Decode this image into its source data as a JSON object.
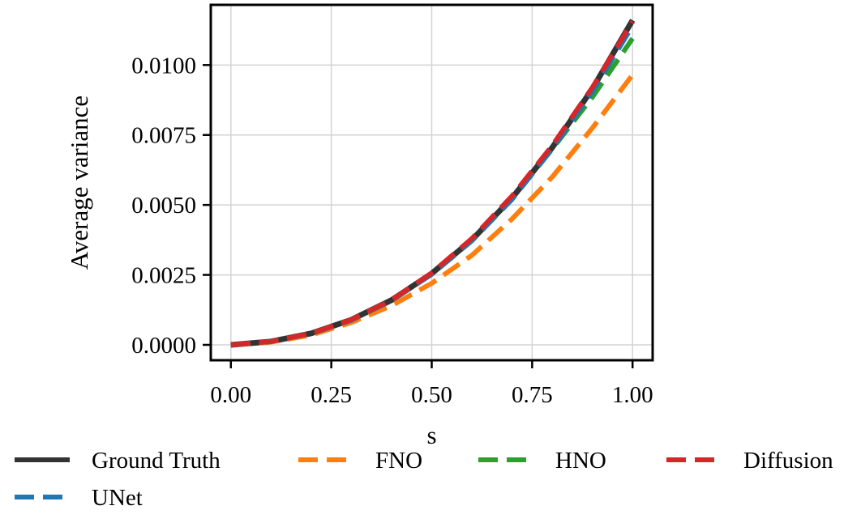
{
  "chart_data": {
    "type": "line",
    "title": "",
    "xlabel": "s",
    "ylabel": "Average variance",
    "xlim": [
      -0.05,
      1.05
    ],
    "ylim": [
      -0.00055,
      0.01215
    ],
    "xticks": [
      0.0,
      0.25,
      0.5,
      0.75,
      1.0
    ],
    "xtick_labels": [
      "0.00",
      "0.25",
      "0.50",
      "0.75",
      "1.00"
    ],
    "yticks": [
      0.0,
      0.0025,
      0.005,
      0.0075,
      0.01
    ],
    "ytick_labels": [
      "0.0000",
      "0.0025",
      "0.0050",
      "0.0075",
      "0.0100"
    ],
    "grid": true,
    "legend_placement": "below",
    "x": [
      0.0,
      0.1,
      0.2,
      0.3,
      0.4,
      0.5,
      0.6,
      0.7,
      0.8,
      0.9,
      1.0
    ],
    "series": [
      {
        "name": "Ground Truth",
        "style": "solid",
        "color": "#333333",
        "values": [
          0.0,
          0.00012,
          0.00041,
          0.0009,
          0.0016,
          0.00255,
          0.00375,
          0.00525,
          0.00705,
          0.00915,
          0.0116
        ]
      },
      {
        "name": "FNO",
        "style": "dashed",
        "color": "#ff7f0e",
        "values": [
          0.0,
          0.0001,
          0.00035,
          0.0008,
          0.0014,
          0.0022,
          0.0032,
          0.0045,
          0.006,
          0.00775,
          0.00965
        ]
      },
      {
        "name": "HNO",
        "style": "dashed",
        "color": "#2ca02c",
        "values": [
          0.0,
          0.00012,
          0.00041,
          0.0009,
          0.0016,
          0.00255,
          0.00375,
          0.00525,
          0.007,
          0.00885,
          0.01095
        ]
      },
      {
        "name": "Diffusion",
        "style": "dashed",
        "color": "#d62728",
        "values": [
          0.0,
          0.00012,
          0.00041,
          0.0009,
          0.0016,
          0.00257,
          0.0038,
          0.00532,
          0.00712,
          0.0092,
          0.01155
        ]
      },
      {
        "name": "UNet",
        "style": "dashed",
        "color": "#1f77b4",
        "values": [
          0.0,
          0.00012,
          0.0004,
          0.00088,
          0.00158,
          0.00252,
          0.00372,
          0.0052,
          0.007,
          0.00905,
          0.0114
        ]
      }
    ],
    "legend": {
      "rows": [
        [
          "Ground Truth",
          "FNO",
          "HNO",
          "Diffusion"
        ],
        [
          "UNet"
        ]
      ]
    }
  }
}
